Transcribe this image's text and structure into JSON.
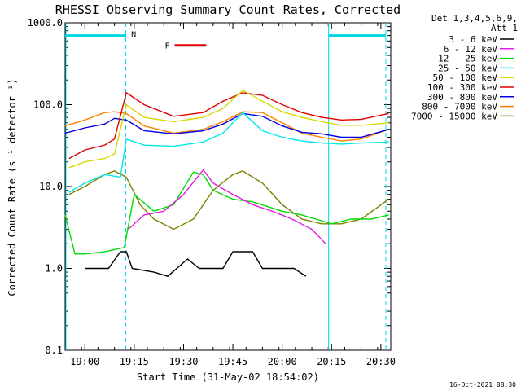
{
  "chart_data": {
    "type": "line",
    "title": "RHESSI Observing Summary Count Rates, Corrected",
    "xlabel": "Start Time (31-May-02 18:54:02)",
    "ylabel": "Corrected Count Rate (s⁻¹ detector⁻¹)",
    "yscale": "log",
    "ylim": [
      0.1,
      1000
    ],
    "xlim_minutes": [
      18.9,
      20.55
    ],
    "x_tick_labels": [
      "19:00",
      "19:15",
      "19:30",
      "19:45",
      "20:00",
      "20:15",
      "20:30"
    ],
    "x_tick_values_h": [
      19.0,
      19.25,
      19.5,
      19.75,
      20.0,
      20.25,
      20.5
    ],
    "y_tick_labels": [
      "0.1",
      "1.0",
      "10.0",
      "100.0",
      "1000.0"
    ],
    "y_tick_values": [
      0.1,
      1,
      10,
      100,
      1000
    ],
    "legend_header": [
      "Det 1,3,4,5,6,9,",
      "Att 1"
    ],
    "legend_placement": "right",
    "timestamp": "16-Oct-2021 08:30",
    "flags": {
      "night_label": "N",
      "flare_label": "F",
      "night_color": "#00d8e8",
      "flare_color": "#e00000",
      "night_spans_h": [
        [
          18.9,
          19.21
        ],
        [
          20.235,
          20.525
        ]
      ],
      "flare_span_h": [
        19.455,
        19.615
      ],
      "flag_level": 700,
      "flare_level": 530,
      "dashed_lines_h": [
        19.207,
        20.525
      ]
    },
    "series": [
      {
        "name": "3 - 6 keV",
        "color": "#000000",
        "points": [
          [
            19.0,
            1.0
          ],
          [
            19.12,
            1.0
          ],
          [
            19.18,
            1.6
          ],
          [
            19.21,
            1.6
          ],
          [
            19.24,
            1.0
          ],
          [
            19.35,
            0.9
          ],
          [
            19.42,
            0.8
          ],
          [
            19.52,
            1.3
          ],
          [
            19.58,
            1.0
          ],
          [
            19.7,
            1.0
          ],
          [
            19.75,
            1.6
          ],
          [
            19.85,
            1.6
          ],
          [
            19.9,
            1.0
          ],
          [
            20.0,
            1.0
          ],
          [
            20.06,
            1.0
          ],
          [
            20.12,
            0.8
          ]
        ]
      },
      {
        "name": "6 - 12 keV",
        "color": "#e020e0",
        "points": [
          [
            19.22,
            3.0
          ],
          [
            19.3,
            4.5
          ],
          [
            19.4,
            5.0
          ],
          [
            19.5,
            8.0
          ],
          [
            19.6,
            16.0
          ],
          [
            19.65,
            11.0
          ],
          [
            19.75,
            8.0
          ],
          [
            19.85,
            6.0
          ],
          [
            19.95,
            5.0
          ],
          [
            20.05,
            4.0
          ],
          [
            20.15,
            3.0
          ],
          [
            20.22,
            2.0
          ]
        ]
      },
      {
        "name": "12 - 25 keV",
        "color": "#00dd00",
        "points": [
          [
            18.9,
            4.5
          ],
          [
            18.95,
            1.5
          ],
          [
            19.0,
            1.5
          ],
          [
            19.1,
            1.6
          ],
          [
            19.2,
            1.8
          ],
          [
            19.25,
            8.0
          ],
          [
            19.35,
            5.0
          ],
          [
            19.45,
            6.0
          ],
          [
            19.55,
            15.0
          ],
          [
            19.6,
            14.0
          ],
          [
            19.65,
            9.0
          ],
          [
            19.75,
            7.0
          ],
          [
            19.85,
            6.5
          ],
          [
            20.0,
            5.0
          ],
          [
            20.1,
            4.5
          ],
          [
            20.25,
            3.5
          ],
          [
            20.35,
            4.0
          ],
          [
            20.45,
            4.0
          ],
          [
            20.54,
            4.5
          ]
        ]
      },
      {
        "name": "25 - 50 keV",
        "color": "#00e8e8",
        "points": [
          [
            18.92,
            8.5
          ],
          [
            19.0,
            11.0
          ],
          [
            19.1,
            14.0
          ],
          [
            19.18,
            13.0
          ],
          [
            19.21,
            38.0
          ],
          [
            19.3,
            32.0
          ],
          [
            19.45,
            31.0
          ],
          [
            19.6,
            35.0
          ],
          [
            19.7,
            45.0
          ],
          [
            19.8,
            80.0
          ],
          [
            19.9,
            48.0
          ],
          [
            20.0,
            40.0
          ],
          [
            20.1,
            36.0
          ],
          [
            20.2,
            34.0
          ],
          [
            20.3,
            33.0
          ],
          [
            20.4,
            34.0
          ],
          [
            20.54,
            35.0
          ]
        ]
      },
      {
        "name": "50 - 100 keV",
        "color": "#d8d800",
        "points": [
          [
            18.92,
            17.0
          ],
          [
            19.0,
            20.0
          ],
          [
            19.1,
            22.0
          ],
          [
            19.15,
            25.0
          ],
          [
            19.21,
            100.0
          ],
          [
            19.3,
            70.0
          ],
          [
            19.45,
            62.0
          ],
          [
            19.6,
            70.0
          ],
          [
            19.7,
            90.0
          ],
          [
            19.8,
            150.0
          ],
          [
            19.9,
            110.0
          ],
          [
            20.0,
            82.0
          ],
          [
            20.1,
            70.0
          ],
          [
            20.2,
            62.0
          ],
          [
            20.3,
            56.0
          ],
          [
            20.4,
            56.0
          ],
          [
            20.54,
            60.0
          ]
        ]
      },
      {
        "name": "100 - 300 keV",
        "color": "#e00000",
        "points": [
          [
            18.92,
            22.0
          ],
          [
            19.0,
            28.0
          ],
          [
            19.1,
            32.0
          ],
          [
            19.15,
            38.0
          ],
          [
            19.21,
            140.0
          ],
          [
            19.3,
            100.0
          ],
          [
            19.45,
            72.0
          ],
          [
            19.6,
            80.0
          ],
          [
            19.7,
            110.0
          ],
          [
            19.8,
            140.0
          ],
          [
            19.9,
            130.0
          ],
          [
            20.0,
            100.0
          ],
          [
            20.1,
            80.0
          ],
          [
            20.2,
            70.0
          ],
          [
            20.3,
            65.0
          ],
          [
            20.4,
            66.0
          ],
          [
            20.54,
            78.0
          ]
        ]
      },
      {
        "name": "300 - 800 keV",
        "color": "#0000e0",
        "points": [
          [
            18.9,
            45.0
          ],
          [
            19.0,
            52.0
          ],
          [
            19.1,
            58.0
          ],
          [
            19.15,
            68.0
          ],
          [
            19.21,
            65.0
          ],
          [
            19.3,
            48.0
          ],
          [
            19.45,
            44.0
          ],
          [
            19.6,
            48.0
          ],
          [
            19.7,
            58.0
          ],
          [
            19.8,
            78.0
          ],
          [
            19.9,
            72.0
          ],
          [
            20.0,
            55.0
          ],
          [
            20.1,
            46.0
          ],
          [
            20.2,
            44.0
          ],
          [
            20.3,
            40.0
          ],
          [
            20.4,
            40.0
          ],
          [
            20.54,
            50.0
          ]
        ]
      },
      {
        "name": "800 - 7000 keV",
        "color": "#ff8000",
        "points": [
          [
            18.9,
            55.0
          ],
          [
            19.0,
            65.0
          ],
          [
            19.1,
            80.0
          ],
          [
            19.15,
            82.0
          ],
          [
            19.21,
            78.0
          ],
          [
            19.3,
            55.0
          ],
          [
            19.45,
            45.0
          ],
          [
            19.6,
            50.0
          ],
          [
            19.7,
            62.0
          ],
          [
            19.8,
            82.0
          ],
          [
            19.9,
            80.0
          ],
          [
            20.0,
            60.0
          ],
          [
            20.1,
            45.0
          ],
          [
            20.2,
            40.0
          ],
          [
            20.3,
            36.0
          ],
          [
            20.4,
            38.0
          ],
          [
            20.54,
            50.0
          ]
        ]
      },
      {
        "name": "7000 - 15000 keV",
        "color": "#808000",
        "points": [
          [
            18.92,
            8.0
          ],
          [
            19.0,
            10.0
          ],
          [
            19.1,
            14.0
          ],
          [
            19.15,
            15.5
          ],
          [
            19.21,
            13.0
          ],
          [
            19.28,
            6.0
          ],
          [
            19.35,
            4.0
          ],
          [
            19.45,
            3.0
          ],
          [
            19.55,
            4.0
          ],
          [
            19.65,
            9.0
          ],
          [
            19.75,
            14.0
          ],
          [
            19.8,
            15.5
          ],
          [
            19.9,
            11.0
          ],
          [
            20.0,
            6.0
          ],
          [
            20.1,
            4.0
          ],
          [
            20.2,
            3.5
          ],
          [
            20.3,
            3.5
          ],
          [
            20.4,
            4.0
          ],
          [
            20.54,
            7.0
          ]
        ]
      }
    ]
  }
}
